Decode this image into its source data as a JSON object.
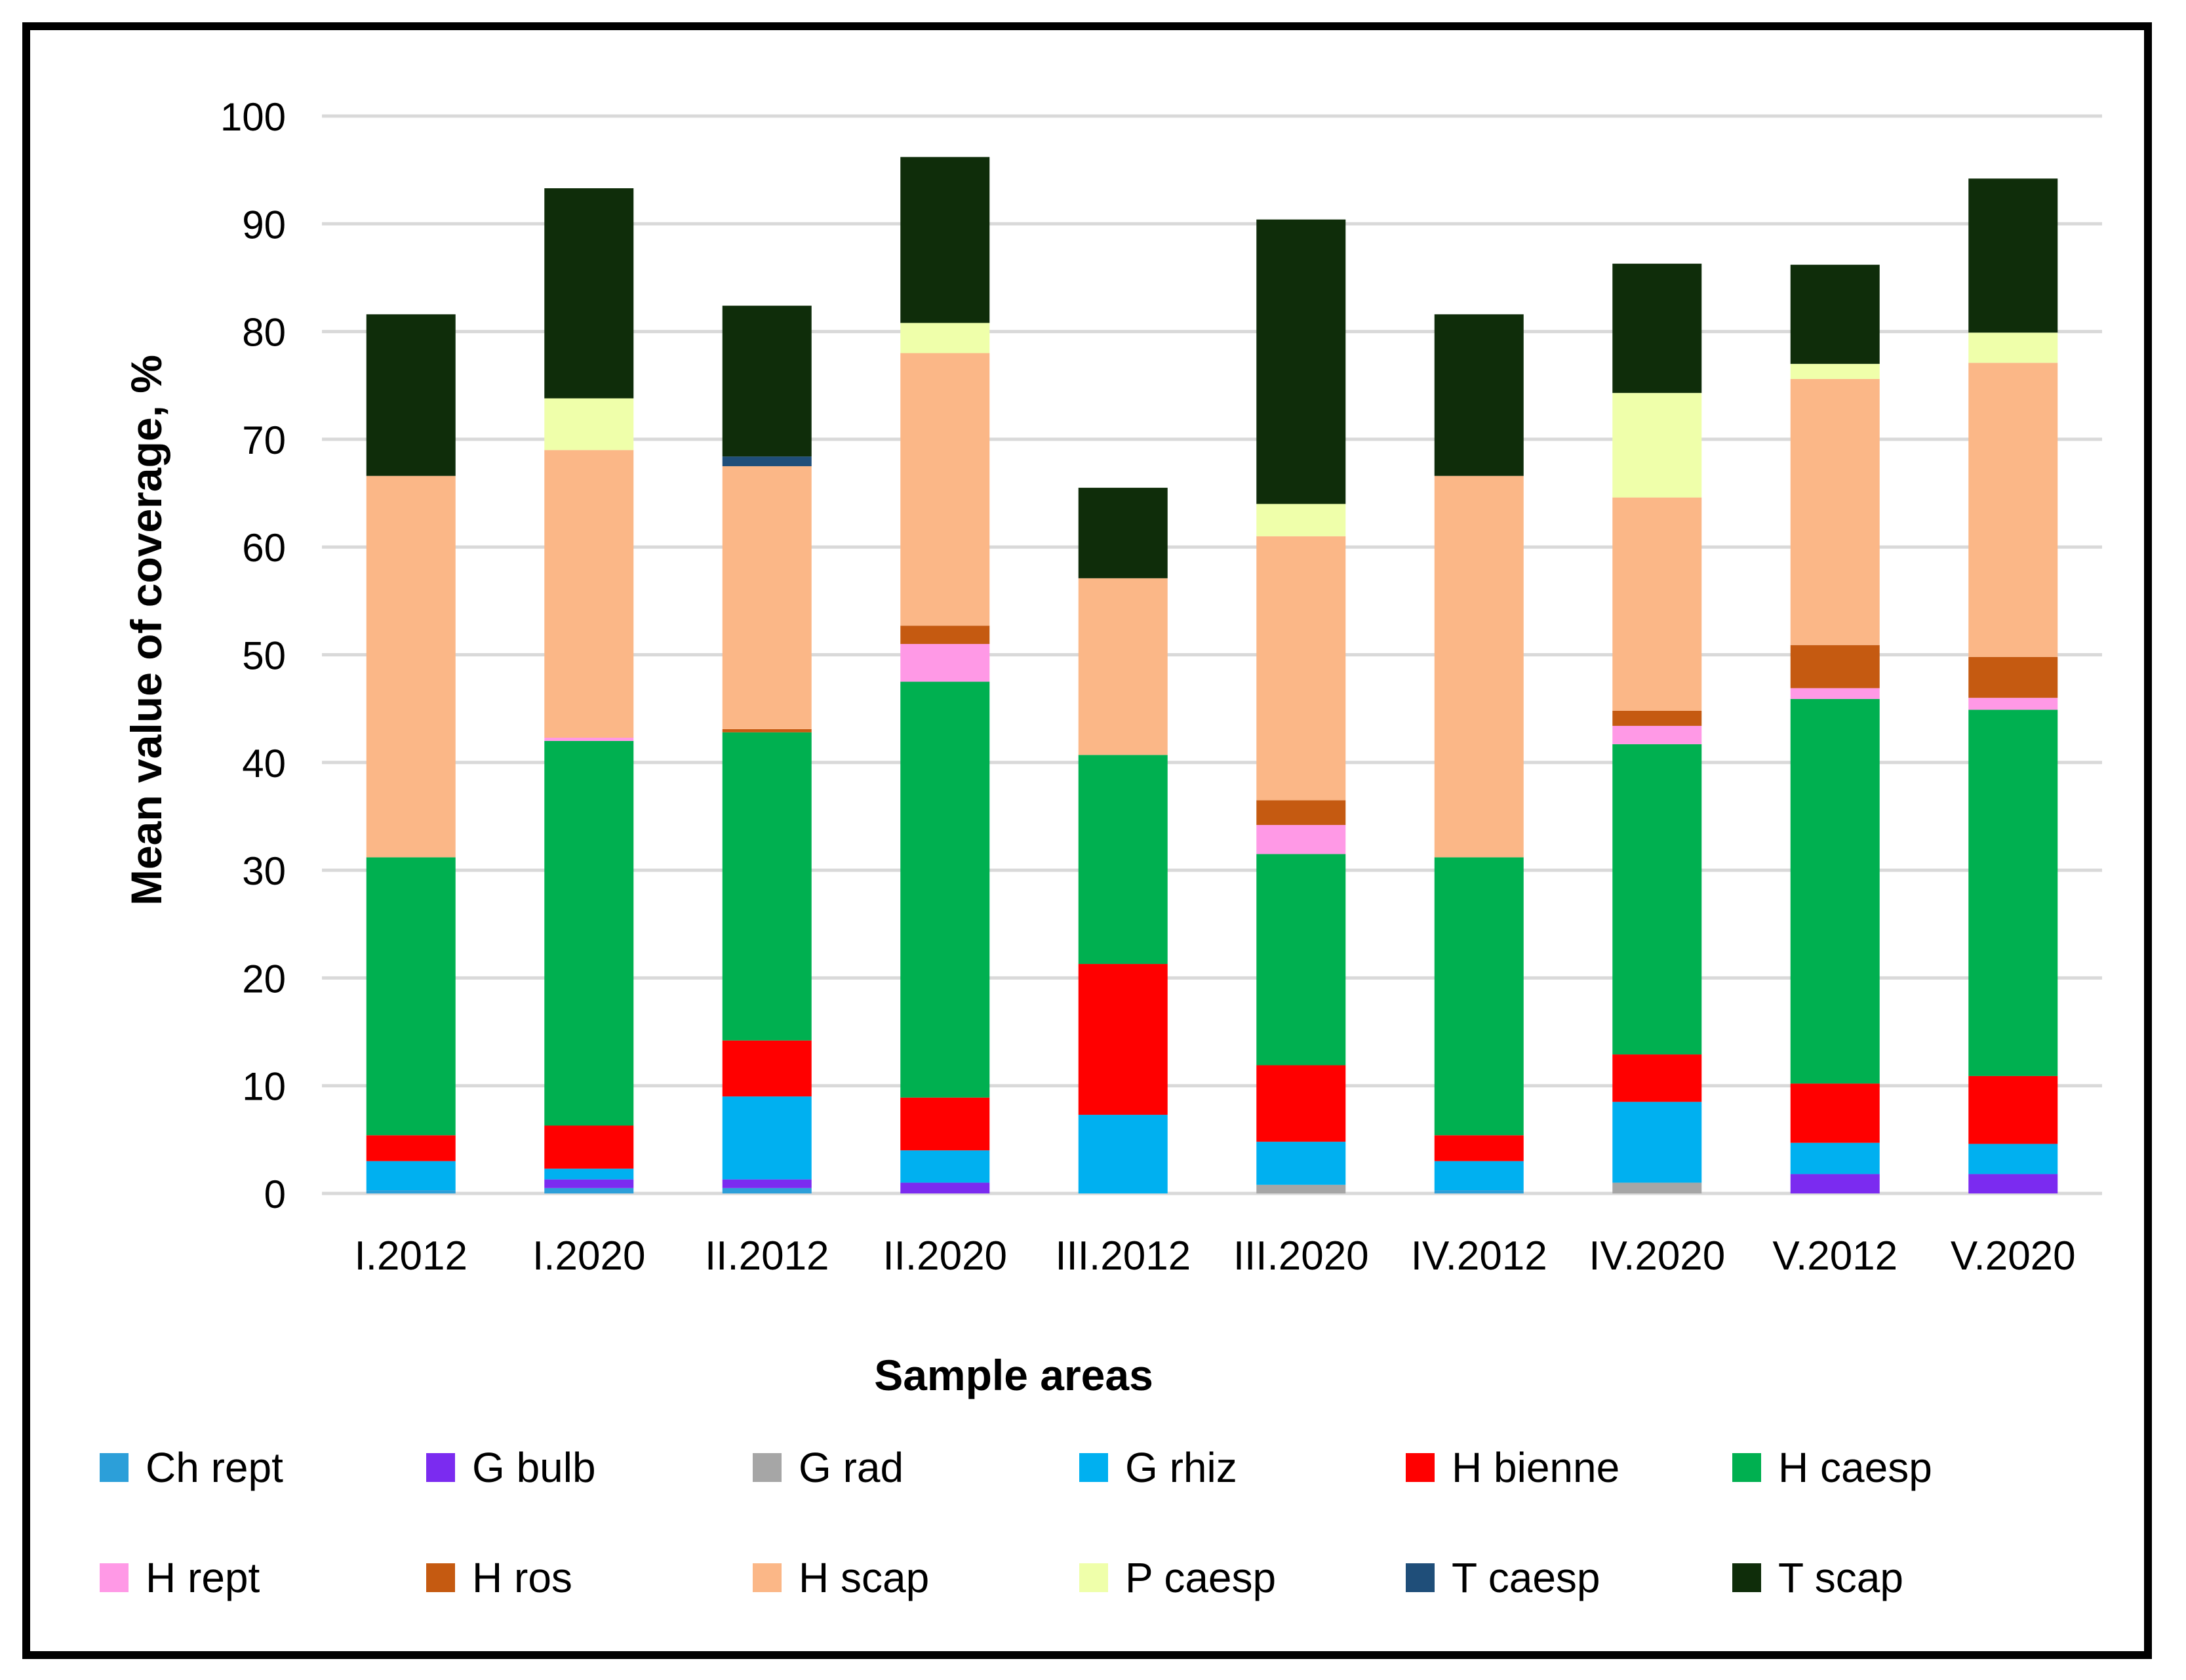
{
  "chart_data": {
    "type": "bar",
    "stacked": true,
    "title": "",
    "xlabel": "Sample areas",
    "ylabel": "Mean value of coverage, %",
    "ylim": [
      0,
      100
    ],
    "yticks": [
      0,
      10,
      20,
      30,
      40,
      50,
      60,
      70,
      80,
      90,
      100
    ],
    "categories": [
      "I.2012",
      "I.2020",
      "II.2012",
      "II.2020",
      "III.2012",
      "III.2020",
      "IV.2012",
      "IV.2020",
      "V.2012",
      "V.2020"
    ],
    "series": [
      {
        "name": "Ch rept",
        "color": "#2c9fd9",
        "values": [
          0.3,
          0.5,
          0.5,
          0.0,
          0.0,
          0.0,
          0.3,
          0.0,
          0.0,
          0.0
        ]
      },
      {
        "name": "G bulb",
        "color": "#7b2bf0",
        "values": [
          0.0,
          0.8,
          0.8,
          1.0,
          0.0,
          0.0,
          0.0,
          0.0,
          1.8,
          1.8
        ]
      },
      {
        "name": "G rad",
        "color": "#a6a6a6",
        "values": [
          0.0,
          0.0,
          0.0,
          0.0,
          0.0,
          0.8,
          0.0,
          1.0,
          0.0,
          0.0
        ]
      },
      {
        "name": "G rhiz",
        "color": "#00b0f0",
        "values": [
          2.7,
          1.0,
          7.7,
          3.0,
          7.3,
          4.0,
          2.7,
          7.5,
          2.9,
          2.8
        ]
      },
      {
        "name": "H bienne",
        "color": "#ff0000",
        "values": [
          2.4,
          4.0,
          5.2,
          4.9,
          14.0,
          7.1,
          2.4,
          4.4,
          5.5,
          6.3
        ]
      },
      {
        "name": "H caesp",
        "color": "#00b050",
        "values": [
          25.8,
          35.7,
          28.6,
          38.6,
          19.4,
          19.6,
          25.8,
          28.8,
          35.7,
          34.0
        ]
      },
      {
        "name": "H rept",
        "color": "#ff99e6",
        "values": [
          0.0,
          0.3,
          0.0,
          3.5,
          0.0,
          2.7,
          0.0,
          1.7,
          1.0,
          1.1
        ]
      },
      {
        "name": "H ros",
        "color": "#c55a11",
        "values": [
          0.0,
          0.0,
          0.3,
          1.7,
          0.0,
          2.3,
          0.0,
          1.4,
          4.0,
          3.8
        ]
      },
      {
        "name": "H scap",
        "color": "#fbb787",
        "values": [
          35.4,
          26.7,
          24.4,
          25.3,
          16.4,
          24.5,
          35.4,
          19.8,
          24.7,
          27.3
        ]
      },
      {
        "name": "P caesp",
        "color": "#efffaa",
        "values": [
          0.0,
          4.8,
          0.0,
          2.8,
          0.0,
          3.0,
          0.0,
          9.7,
          1.4,
          2.8
        ]
      },
      {
        "name": "T caesp",
        "color": "#1f4e79",
        "values": [
          0.0,
          0.0,
          0.9,
          0.0,
          0.0,
          0.0,
          0.0,
          0.0,
          0.0,
          0.0
        ]
      },
      {
        "name": "T scap",
        "color": "#0f2d0a",
        "values": [
          15.0,
          19.5,
          14.0,
          15.4,
          8.4,
          26.4,
          15.0,
          12.0,
          9.2,
          14.3
        ]
      }
    ]
  }
}
